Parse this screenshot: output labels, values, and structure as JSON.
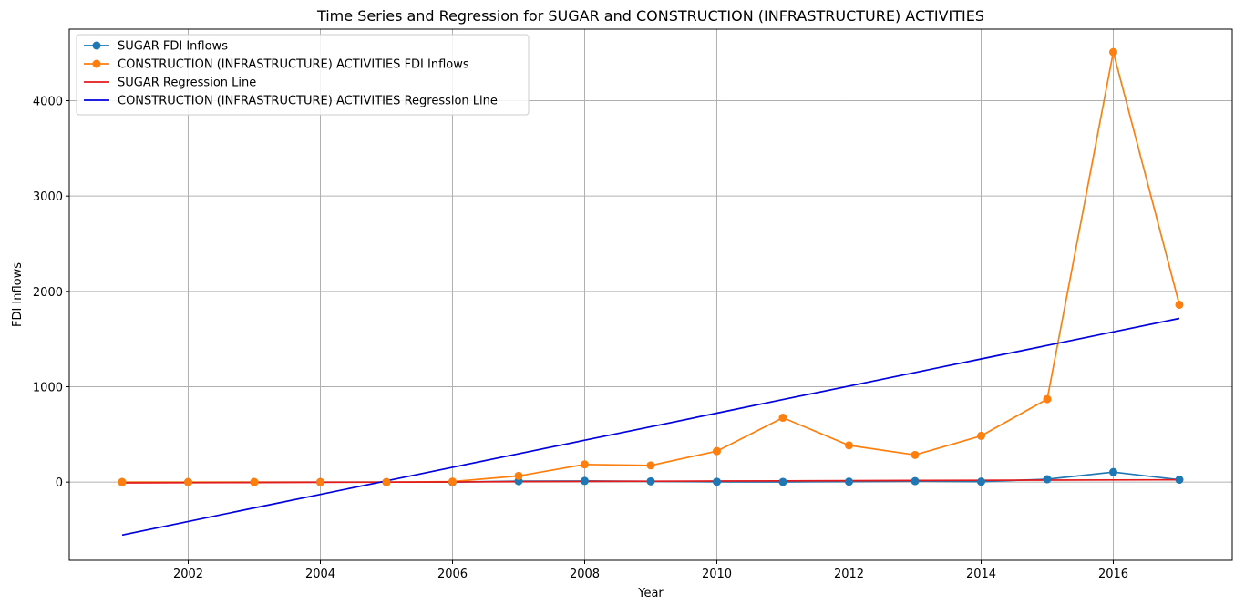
{
  "chart_data": {
    "type": "line",
    "title": "Time Series and Regression for SUGAR and CONSTRUCTION (INFRASTRUCTURE) ACTIVITIES",
    "xlabel": "Year",
    "ylabel": "FDI Inflows",
    "xlim": [
      2000.2,
      2017.8
    ],
    "ylim": [
      -820,
      4750
    ],
    "x_ticks": [
      2002,
      2004,
      2006,
      2008,
      2010,
      2012,
      2014,
      2016
    ],
    "y_ticks": [
      0,
      1000,
      2000,
      3000,
      4000
    ],
    "grid": true,
    "legend_position": "top-left",
    "x": [
      2001,
      2002,
      2003,
      2004,
      2005,
      2006,
      2007,
      2008,
      2009,
      2010,
      2011,
      2012,
      2013,
      2014,
      2015,
      2016,
      2017
    ],
    "series": [
      {
        "name": "SUGAR FDI Inflows",
        "kind": "line-markers",
        "color": "#1f77b4",
        "values": [
          0,
          0,
          0,
          0,
          0,
          0,
          10,
          12,
          8,
          3,
          2,
          5,
          10,
          5,
          30,
          105,
          25
        ]
      },
      {
        "name": "CONSTRUCTION (INFRASTRUCTURE) ACTIVITIES FDI Inflows",
        "kind": "line-markers",
        "color": "#ff7f0e",
        "values": [
          0,
          0,
          0,
          0,
          0,
          5,
          65,
          185,
          175,
          325,
          675,
          385,
          285,
          485,
          870,
          4510,
          1860
        ]
      },
      {
        "name": "SUGAR Regression Line",
        "kind": "line",
        "color": "#e41a1c",
        "values": [
          -8,
          -6,
          -4,
          -2,
          0,
          2,
          5,
          7,
          9,
          11,
          13,
          15,
          17,
          19,
          21,
          23,
          25
        ]
      },
      {
        "name": "CONSTRUCTION (INFRASTRUCTURE) ACTIVITIES Regression Line",
        "kind": "line",
        "color": "#0000dd",
        "values": [
          -555,
          -413,
          -271,
          -129,
          13,
          155,
          297,
          439,
          581,
          723,
          865,
          1007,
          1149,
          1291,
          1433,
          1575,
          1717
        ]
      }
    ]
  }
}
